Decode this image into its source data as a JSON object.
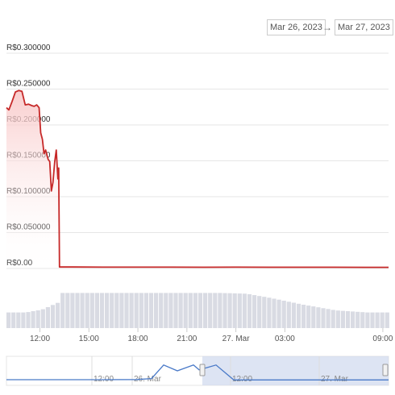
{
  "range_selector": {
    "from": "Mar 26, 2023",
    "arrow": "→",
    "to": "Mar 27, 2023"
  },
  "colors": {
    "price_line": "#c62828",
    "price_fill": "#f8c4c4",
    "volume_bar": "#d9dbe3",
    "navigator_line": "#4a7ac8",
    "navigator_mask": "#cfd9ee"
  },
  "chart_data": {
    "type": "area",
    "ylabel_ticks": [
      "R$0.00",
      "R$0.050000",
      "R$0.100000",
      "R$0.150000",
      "R$0.200000",
      "R$0.250000",
      "R$0.300000"
    ],
    "ylim": [
      0,
      0.3
    ],
    "x_ticks": [
      "12:00",
      "15:00",
      "18:00",
      "21:00",
      "27. Mar",
      "03:00",
      "09:00"
    ],
    "x_tick_hours": [
      12,
      15,
      18,
      21,
      24,
      27,
      33
    ],
    "xlim_hours": [
      9.95,
      33.35
    ],
    "grid": true,
    "series": [
      {
        "x_hours": [
          9.95,
          10.1,
          10.3,
          10.5,
          10.7,
          10.9,
          11.1,
          11.3,
          11.5,
          11.65,
          11.8,
          11.95,
          12.05,
          12.15,
          12.25,
          12.35,
          12.5,
          12.6,
          12.7,
          12.8,
          12.9,
          13.0,
          13.1,
          13.15,
          13.2,
          14.0,
          16.0,
          18.0,
          20.0,
          22.0,
          24.0,
          26.0,
          28.0,
          30.0,
          32.0,
          33.35
        ],
        "values": [
          0.224,
          0.221,
          0.233,
          0.246,
          0.248,
          0.247,
          0.228,
          0.229,
          0.227,
          0.226,
          0.228,
          0.224,
          0.189,
          0.18,
          0.16,
          0.165,
          0.152,
          0.149,
          0.108,
          0.12,
          0.148,
          0.165,
          0.125,
          0.14,
          0.002,
          0.002,
          0.0018,
          0.0018,
          0.0018,
          0.0017,
          0.0018,
          0.0017,
          0.0017,
          0.0017,
          0.0016,
          0.0016
        ]
      }
    ],
    "volume": {
      "x_hours": [
        9.95,
        11.0,
        12.0,
        12.5,
        13.0,
        13.2,
        16.0,
        20.0,
        23.0,
        24.5,
        26.0,
        28.0,
        30.0,
        32.0,
        33.35
      ],
      "values": [
        0.44,
        0.44,
        0.52,
        0.62,
        0.72,
        0.99,
        0.99,
        0.99,
        0.99,
        0.97,
        0.85,
        0.66,
        0.5,
        0.44,
        0.44
      ]
    },
    "navigator": {
      "labels": [
        "12:00",
        "26. Mar",
        "12:00",
        "27. Mar"
      ],
      "values": [
        0.04,
        0.04,
        0.05,
        0.1,
        0.8,
        0.5,
        0.8,
        0.55,
        0.8,
        0.03,
        0.03
      ]
    }
  }
}
